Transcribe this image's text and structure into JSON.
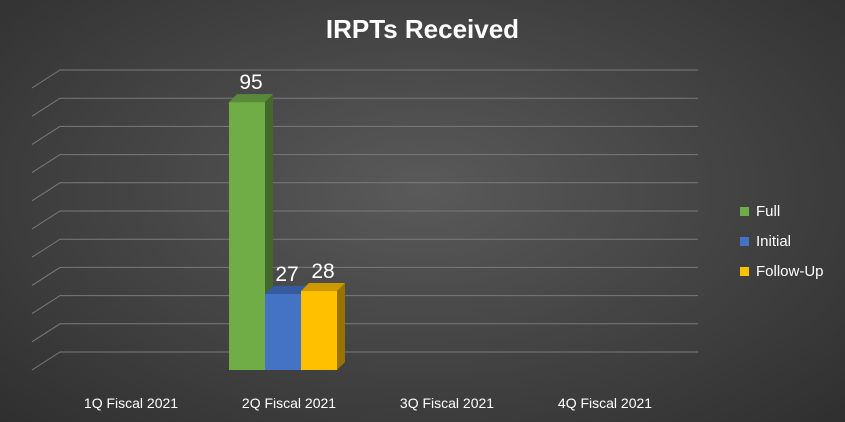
{
  "chart_data": {
    "type": "bar",
    "title": "IRPTs Received",
    "categories": [
      "1Q Fiscal 2021",
      "2Q Fiscal 2021",
      "3Q Fiscal 2021",
      "4Q Fiscal 2021"
    ],
    "series": [
      {
        "name": "Full",
        "color": "#70ad47",
        "values": [
          null,
          95,
          null,
          null
        ]
      },
      {
        "name": "Initial",
        "color": "#4472c4",
        "values": [
          null,
          27,
          null,
          null
        ]
      },
      {
        "name": "Follow-Up",
        "color": "#ffc000",
        "values": [
          null,
          28,
          null,
          null
        ]
      }
    ],
    "ylim": [
      0,
      100
    ],
    "grid": true,
    "legend_position": "right",
    "three_d": true
  }
}
